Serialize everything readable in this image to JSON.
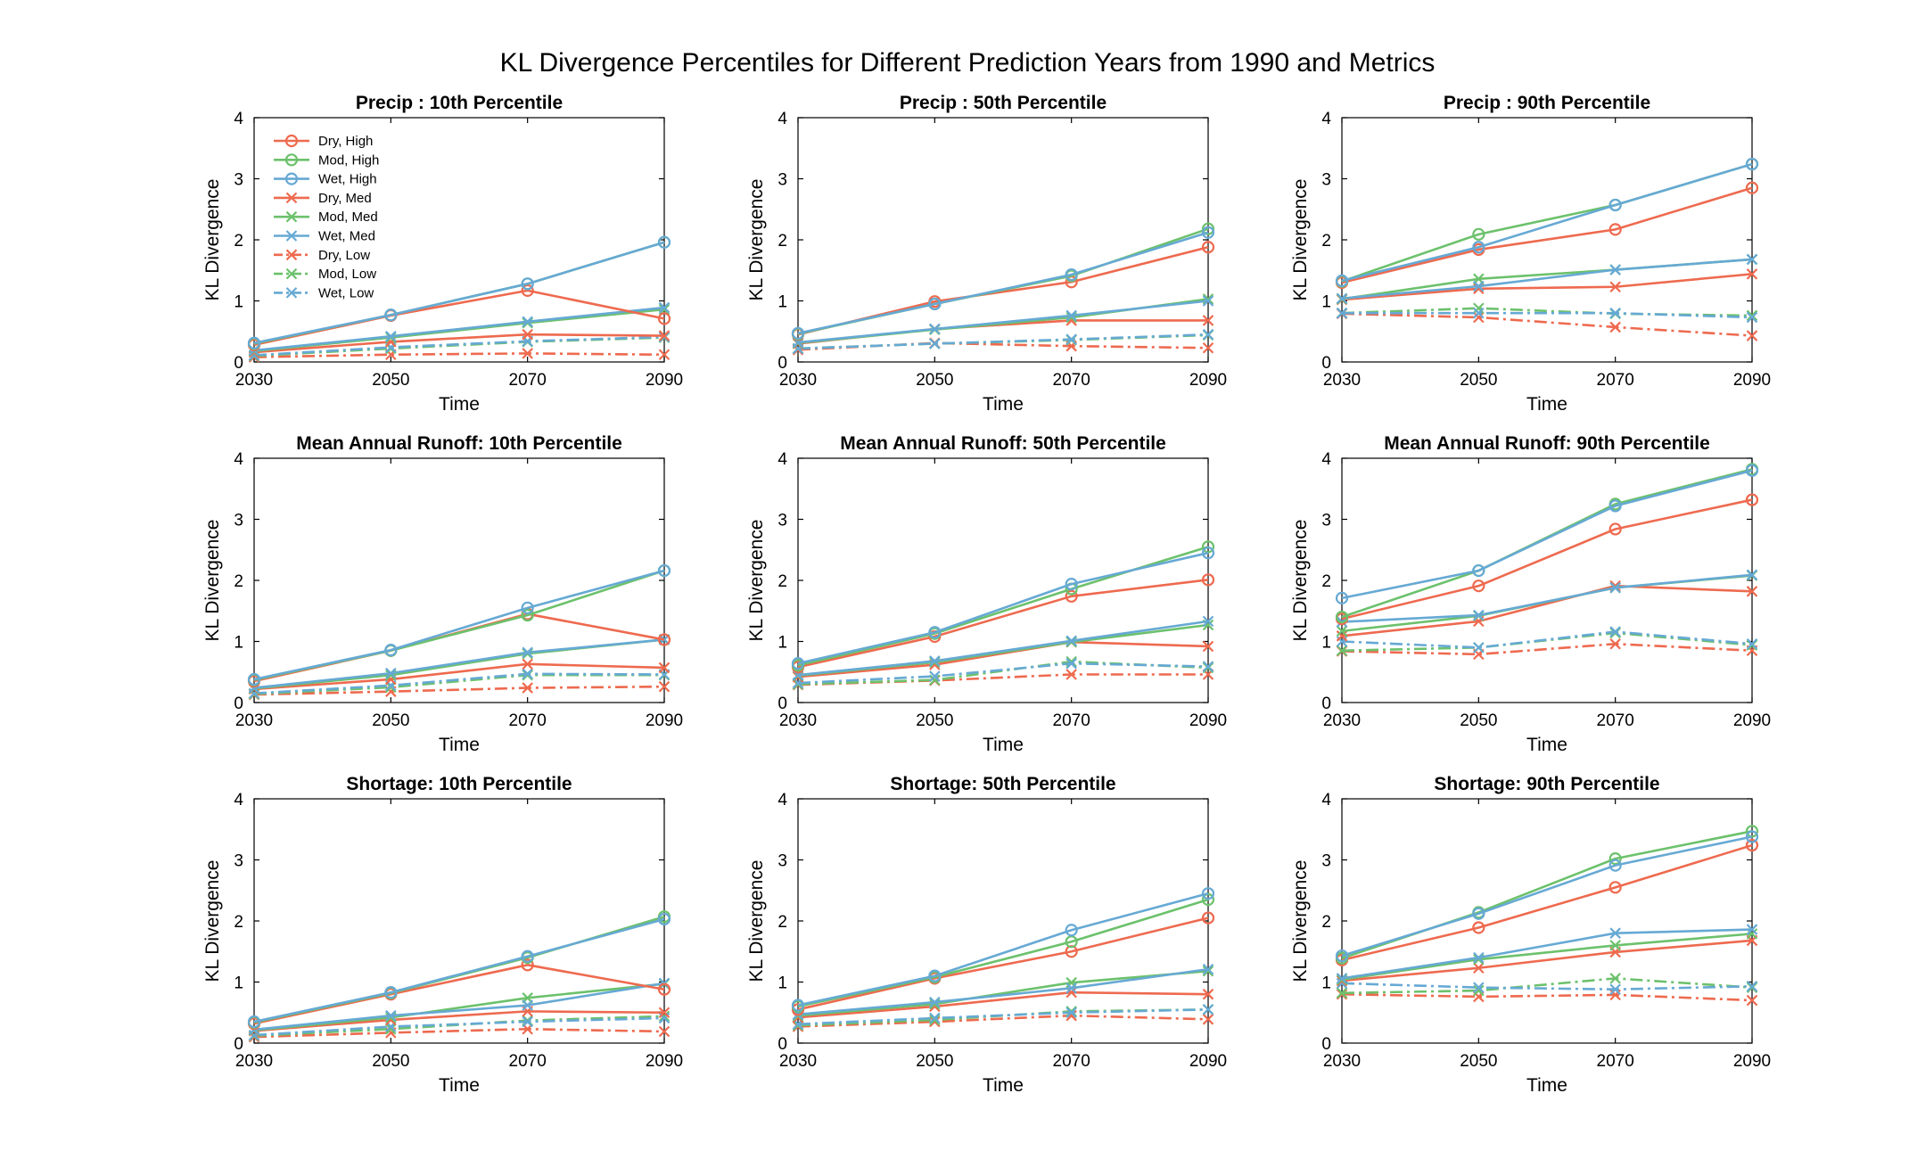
{
  "figure_title": "KL Divergence Percentiles for Different Prediction Years from 1990 and Metrics",
  "colors": {
    "Dry": "#EE6A4F",
    "Mod": "#6CC16C",
    "Wet": "#66A9D4"
  },
  "chart_data": [
    {
      "type": "line",
      "title": "Precip : 10th Percentile",
      "xlabel": "Time",
      "ylabel": "KL Divergence",
      "x": [
        2030,
        2050,
        2070,
        2090
      ],
      "xlim": [
        2030,
        2090
      ],
      "ylim": [
        0,
        4
      ],
      "grid": false,
      "legend_position": "top-left",
      "series": [
        {
          "name": "Dry, High",
          "values": [
            0.28,
            0.76,
            1.17,
            0.71
          ]
        },
        {
          "name": "Mod, High",
          "values": [
            0.3,
            0.77,
            1.28,
            1.96
          ]
        },
        {
          "name": "Wet, High",
          "values": [
            0.31,
            0.77,
            1.28,
            1.96
          ]
        },
        {
          "name": "Dry, Med",
          "values": [
            0.16,
            0.33,
            0.45,
            0.43
          ]
        },
        {
          "name": "Mod, Med",
          "values": [
            0.18,
            0.4,
            0.64,
            0.86
          ]
        },
        {
          "name": "Wet, Med",
          "values": [
            0.19,
            0.42,
            0.66,
            0.89
          ]
        },
        {
          "name": "Dry, Low",
          "values": [
            0.08,
            0.12,
            0.14,
            0.12
          ]
        },
        {
          "name": "Mod, Low",
          "values": [
            0.1,
            0.22,
            0.33,
            0.4
          ]
        },
        {
          "name": "Wet, Low",
          "values": [
            0.11,
            0.24,
            0.34,
            0.41
          ]
        }
      ]
    },
    {
      "type": "line",
      "title": "Precip : 50th Percentile",
      "xlabel": "Time",
      "ylabel": "KL Divergence",
      "x": [
        2030,
        2050,
        2070,
        2090
      ],
      "xlim": [
        2030,
        2090
      ],
      "ylim": [
        0,
        4
      ],
      "grid": false,
      "series": [
        {
          "name": "Dry, High",
          "values": [
            0.45,
            0.99,
            1.31,
            1.88
          ]
        },
        {
          "name": "Mod, High",
          "values": [
            0.46,
            0.95,
            1.41,
            2.18
          ]
        },
        {
          "name": "Wet, High",
          "values": [
            0.47,
            0.95,
            1.43,
            2.12
          ]
        },
        {
          "name": "Dry, Med",
          "values": [
            0.3,
            0.54,
            0.68,
            0.68
          ]
        },
        {
          "name": "Mod, Med",
          "values": [
            0.31,
            0.53,
            0.73,
            1.03
          ]
        },
        {
          "name": "Wet, Med",
          "values": [
            0.32,
            0.54,
            0.76,
            1.0
          ]
        },
        {
          "name": "Dry, Low",
          "values": [
            0.2,
            0.31,
            0.26,
            0.23
          ]
        },
        {
          "name": "Mod, Low",
          "values": [
            0.22,
            0.3,
            0.36,
            0.44
          ]
        },
        {
          "name": "Wet, Low",
          "values": [
            0.22,
            0.3,
            0.37,
            0.45
          ]
        }
      ]
    },
    {
      "type": "line",
      "title": "Precip : 90th Percentile",
      "xlabel": "Time",
      "ylabel": "KL Divergence",
      "x": [
        2030,
        2050,
        2070,
        2090
      ],
      "xlim": [
        2030,
        2090
      ],
      "ylim": [
        0,
        4
      ],
      "grid": false,
      "series": [
        {
          "name": "Dry, High",
          "values": [
            1.3,
            1.84,
            2.17,
            2.85
          ]
        },
        {
          "name": "Mod, High",
          "values": [
            1.32,
            2.09,
            2.57,
            3.24
          ]
        },
        {
          "name": "Wet, High",
          "values": [
            1.33,
            1.88,
            2.57,
            3.24
          ]
        },
        {
          "name": "Dry, Med",
          "values": [
            1.02,
            1.2,
            1.23,
            1.44
          ]
        },
        {
          "name": "Mod, Med",
          "values": [
            1.03,
            1.36,
            1.51,
            1.68
          ]
        },
        {
          "name": "Wet, Med",
          "values": [
            1.04,
            1.24,
            1.51,
            1.68
          ]
        },
        {
          "name": "Dry, Low",
          "values": [
            0.79,
            0.73,
            0.57,
            0.43
          ]
        },
        {
          "name": "Mod, Low",
          "values": [
            0.8,
            0.88,
            0.79,
            0.76
          ]
        },
        {
          "name": "Wet, Low",
          "values": [
            0.8,
            0.8,
            0.8,
            0.73
          ]
        }
      ]
    },
    {
      "type": "line",
      "title": "Mean Annual Runoff: 10th Percentile",
      "xlabel": "Time",
      "ylabel": "KL Divergence",
      "x": [
        2030,
        2050,
        2070,
        2090
      ],
      "xlim": [
        2030,
        2090
      ],
      "ylim": [
        0,
        4
      ],
      "grid": false,
      "series": [
        {
          "name": "Dry, High",
          "values": [
            0.35,
            0.85,
            1.45,
            1.03
          ]
        },
        {
          "name": "Mod, High",
          "values": [
            0.37,
            0.85,
            1.43,
            2.16
          ]
        },
        {
          "name": "Wet, High",
          "values": [
            0.38,
            0.86,
            1.55,
            2.16
          ]
        },
        {
          "name": "Dry, Med",
          "values": [
            0.22,
            0.38,
            0.63,
            0.57
          ]
        },
        {
          "name": "Mod, Med",
          "values": [
            0.23,
            0.45,
            0.8,
            1.03
          ]
        },
        {
          "name": "Wet, Med",
          "values": [
            0.24,
            0.48,
            0.82,
            1.03
          ]
        },
        {
          "name": "Dry, Low",
          "values": [
            0.13,
            0.18,
            0.24,
            0.26
          ]
        },
        {
          "name": "Mod, Low",
          "values": [
            0.14,
            0.25,
            0.45,
            0.45
          ]
        },
        {
          "name": "Wet, Low",
          "values": [
            0.15,
            0.28,
            0.47,
            0.46
          ]
        }
      ]
    },
    {
      "type": "line",
      "title": "Mean Annual Runoff: 50th Percentile",
      "xlabel": "Time",
      "ylabel": "KL Divergence",
      "x": [
        2030,
        2050,
        2070,
        2090
      ],
      "xlim": [
        2030,
        2090
      ],
      "ylim": [
        0,
        4
      ],
      "grid": false,
      "series": [
        {
          "name": "Dry, High",
          "values": [
            0.58,
            1.08,
            1.74,
            2.01
          ]
        },
        {
          "name": "Mod, High",
          "values": [
            0.61,
            1.13,
            1.86,
            2.55
          ]
        },
        {
          "name": "Wet, High",
          "values": [
            0.64,
            1.15,
            1.94,
            2.45
          ]
        },
        {
          "name": "Dry, Med",
          "values": [
            0.42,
            0.62,
            0.99,
            0.92
          ]
        },
        {
          "name": "Mod, Med",
          "values": [
            0.44,
            0.66,
            0.99,
            1.27
          ]
        },
        {
          "name": "Wet, Med",
          "values": [
            0.45,
            0.68,
            1.01,
            1.33
          ]
        },
        {
          "name": "Dry, Low",
          "values": [
            0.29,
            0.36,
            0.46,
            0.46
          ]
        },
        {
          "name": "Mod, Low",
          "values": [
            0.3,
            0.37,
            0.67,
            0.57
          ]
        },
        {
          "name": "Wet, Low",
          "values": [
            0.32,
            0.43,
            0.64,
            0.59
          ]
        }
      ]
    },
    {
      "type": "line",
      "title": "Mean Annual Runoff: 90th Percentile",
      "xlabel": "Time",
      "ylabel": "KL Divergence",
      "x": [
        2030,
        2050,
        2070,
        2090
      ],
      "xlim": [
        2030,
        2090
      ],
      "ylim": [
        0,
        4
      ],
      "grid": false,
      "series": [
        {
          "name": "Dry, High",
          "values": [
            1.37,
            1.91,
            2.84,
            3.32
          ]
        },
        {
          "name": "Mod, High",
          "values": [
            1.4,
            2.16,
            3.25,
            3.82
          ]
        },
        {
          "name": "Wet, High",
          "values": [
            1.71,
            2.16,
            3.22,
            3.8
          ]
        },
        {
          "name": "Dry, Med",
          "values": [
            1.09,
            1.33,
            1.91,
            1.82
          ]
        },
        {
          "name": "Mod, Med",
          "values": [
            1.17,
            1.42,
            1.88,
            2.08
          ]
        },
        {
          "name": "Wet, Med",
          "values": [
            1.32,
            1.43,
            1.88,
            2.09
          ]
        },
        {
          "name": "Dry, Low",
          "values": [
            0.84,
            0.79,
            0.96,
            0.85
          ]
        },
        {
          "name": "Mod, Low",
          "values": [
            0.85,
            0.9,
            1.14,
            0.94
          ]
        },
        {
          "name": "Wet, Low",
          "values": [
            1.0,
            0.9,
            1.16,
            0.96
          ]
        }
      ]
    },
    {
      "type": "line",
      "title": "Shortage: 10th Percentile",
      "xlabel": "Time",
      "ylabel": "KL Divergence",
      "x": [
        2030,
        2050,
        2070,
        2090
      ],
      "xlim": [
        2030,
        2090
      ],
      "ylim": [
        0,
        4
      ],
      "grid": false,
      "series": [
        {
          "name": "Dry, High",
          "values": [
            0.32,
            0.8,
            1.28,
            0.88
          ]
        },
        {
          "name": "Mod, High",
          "values": [
            0.34,
            0.82,
            1.4,
            2.07
          ]
        },
        {
          "name": "Wet, High",
          "values": [
            0.35,
            0.83,
            1.42,
            2.03
          ]
        },
        {
          "name": "Dry, Med",
          "values": [
            0.2,
            0.38,
            0.52,
            0.5
          ]
        },
        {
          "name": "Mod, Med",
          "values": [
            0.21,
            0.42,
            0.74,
            0.97
          ]
        },
        {
          "name": "Wet, Med",
          "values": [
            0.22,
            0.45,
            0.62,
            0.98
          ]
        },
        {
          "name": "Dry, Low",
          "values": [
            0.1,
            0.17,
            0.23,
            0.19
          ]
        },
        {
          "name": "Mod, Low",
          "values": [
            0.12,
            0.23,
            0.37,
            0.44
          ]
        },
        {
          "name": "Wet, Low",
          "values": [
            0.13,
            0.27,
            0.35,
            0.41
          ]
        }
      ]
    },
    {
      "type": "line",
      "title": "Shortage: 50th Percentile",
      "xlabel": "Time",
      "ylabel": "KL Divergence",
      "x": [
        2030,
        2050,
        2070,
        2090
      ],
      "xlim": [
        2030,
        2090
      ],
      "ylim": [
        0,
        4
      ],
      "grid": false,
      "series": [
        {
          "name": "Dry, High",
          "values": [
            0.55,
            1.06,
            1.5,
            2.05
          ]
        },
        {
          "name": "Mod, High",
          "values": [
            0.6,
            1.08,
            1.66,
            2.35
          ]
        },
        {
          "name": "Wet, High",
          "values": [
            0.62,
            1.1,
            1.85,
            2.45
          ]
        },
        {
          "name": "Dry, Med",
          "values": [
            0.42,
            0.6,
            0.83,
            0.8
          ]
        },
        {
          "name": "Mod, Med",
          "values": [
            0.45,
            0.64,
            0.99,
            1.18
          ]
        },
        {
          "name": "Wet, Med",
          "values": [
            0.47,
            0.67,
            0.9,
            1.21
          ]
        },
        {
          "name": "Dry, Low",
          "values": [
            0.27,
            0.35,
            0.45,
            0.39
          ]
        },
        {
          "name": "Mod, Low",
          "values": [
            0.29,
            0.38,
            0.52,
            0.55
          ]
        },
        {
          "name": "Wet, Low",
          "values": [
            0.31,
            0.41,
            0.5,
            0.55
          ]
        }
      ]
    },
    {
      "type": "line",
      "title": "Shortage: 90th Percentile",
      "xlabel": "Time",
      "ylabel": "KL Divergence",
      "x": [
        2030,
        2050,
        2070,
        2090
      ],
      "xlim": [
        2030,
        2090
      ],
      "ylim": [
        0,
        4
      ],
      "grid": false,
      "series": [
        {
          "name": "Dry, High",
          "values": [
            1.36,
            1.89,
            2.55,
            3.24
          ]
        },
        {
          "name": "Mod, High",
          "values": [
            1.39,
            2.14,
            3.02,
            3.47
          ]
        },
        {
          "name": "Wet, High",
          "values": [
            1.43,
            2.12,
            2.91,
            3.38
          ]
        },
        {
          "name": "Dry, Med",
          "values": [
            1.02,
            1.23,
            1.49,
            1.68
          ]
        },
        {
          "name": "Mod, Med",
          "values": [
            1.04,
            1.37,
            1.6,
            1.79
          ]
        },
        {
          "name": "Wet, Med",
          "values": [
            1.06,
            1.4,
            1.8,
            1.86
          ]
        },
        {
          "name": "Dry, Low",
          "values": [
            0.8,
            0.76,
            0.79,
            0.7
          ]
        },
        {
          "name": "Mod, Low",
          "values": [
            0.82,
            0.86,
            1.06,
            0.91
          ]
        },
        {
          "name": "Wet, Low",
          "values": [
            0.98,
            0.91,
            0.88,
            0.93
          ]
        }
      ]
    }
  ]
}
